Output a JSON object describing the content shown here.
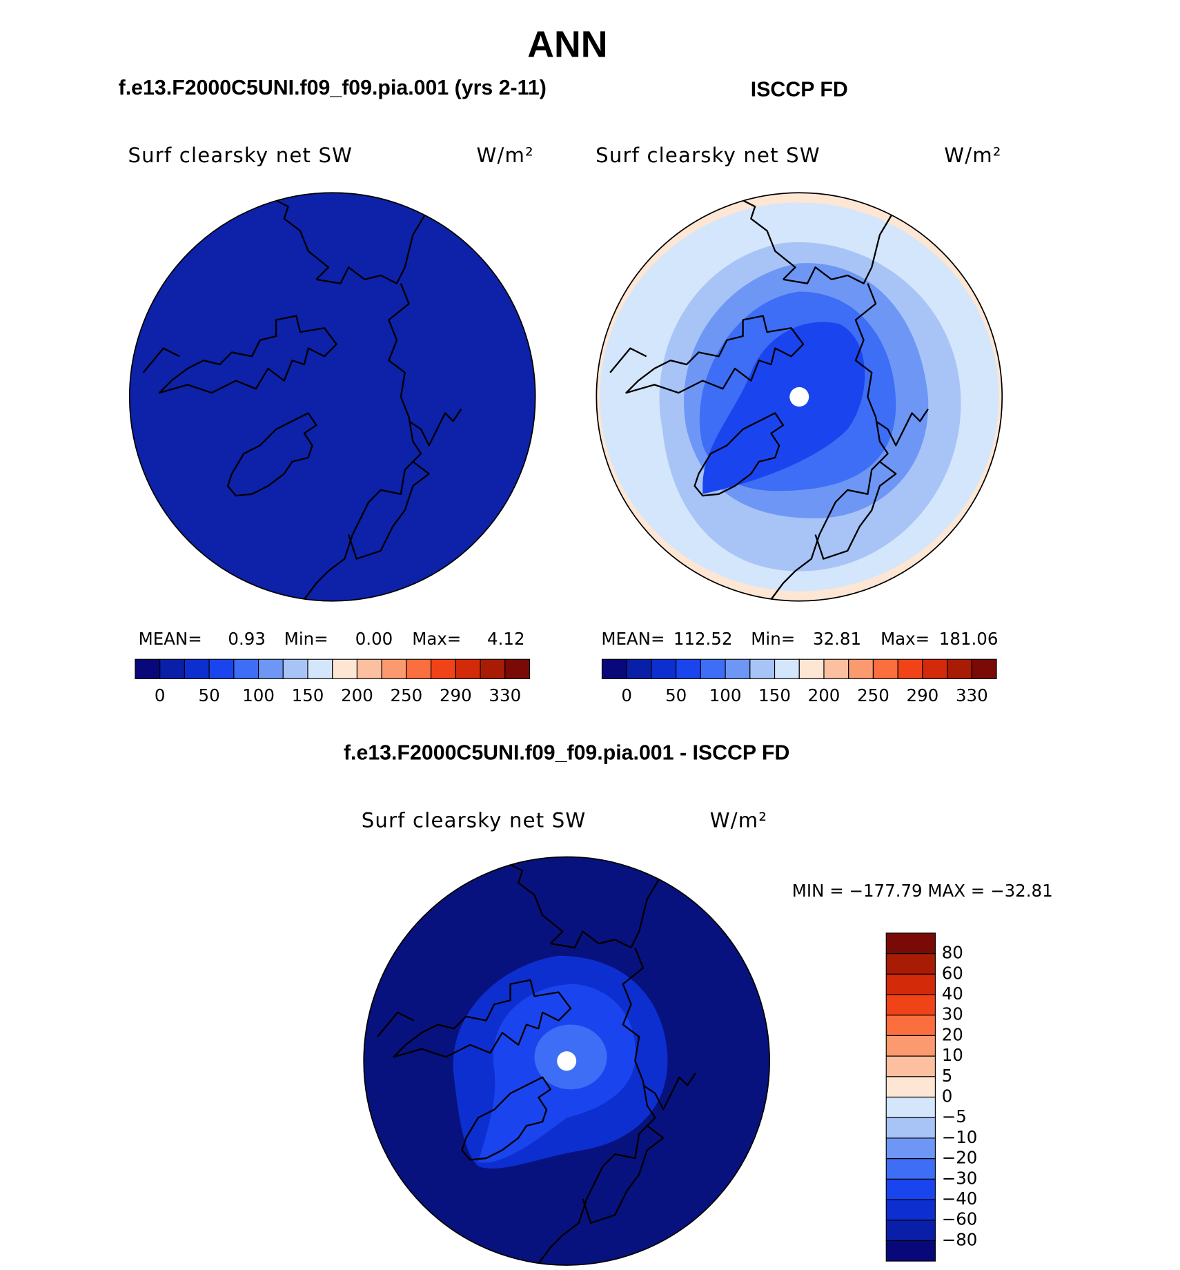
{
  "title": "ANN",
  "panels": [
    {
      "case": "f.e13.F2000C5UNI.f09_f09.pia.001 (yrs 2-11)",
      "variable": "Surf clearsky net SW",
      "units": "W/m²",
      "stats": [
        {
          "label": "MEAN=",
          "value": "0.93"
        },
        {
          "label": "Min=",
          "value": "0.00"
        },
        {
          "label": "Max=",
          "value": "4.12"
        }
      ]
    },
    {
      "case": "ISCCP FD",
      "variable": "Surf clearsky net SW",
      "units": "W/m²",
      "stats": [
        {
          "label": "MEAN=",
          "value": "112.52"
        },
        {
          "label": "Min=",
          "value": "32.81"
        },
        {
          "label": "Max=",
          "value": "181.06"
        }
      ]
    }
  ],
  "colorbar": {
    "labels": [
      "0",
      "50",
      "100",
      "150",
      "200",
      "250",
      "290",
      "330"
    ],
    "colors": [
      "#08087a",
      "#0a1fa8",
      "#0d2fd0",
      "#1a45ee",
      "#3d6ef5",
      "#6e97f5",
      "#a8c4f7",
      "#d4e6fb",
      "#fde6d4",
      "#fcc0a0",
      "#fb9a6e",
      "#fb6e3e",
      "#f04418",
      "#d32a0a",
      "#a81c05",
      "#7a0a05"
    ]
  },
  "difference": {
    "case": "f.e13.F2000C5UNI.f09_f09.pia.001 - ISCCP FD",
    "variable": "Surf clearsky net SW",
    "units": "W/m²",
    "range": "MIN = −177.79 MAX = −32.81",
    "colorbar": {
      "labels": [
        "80",
        "60",
        "40",
        "30",
        "20",
        "10",
        "5",
        "0",
        "−5",
        "−10",
        "−20",
        "−30",
        "−40",
        "−60",
        "−80"
      ]
    }
  }
}
